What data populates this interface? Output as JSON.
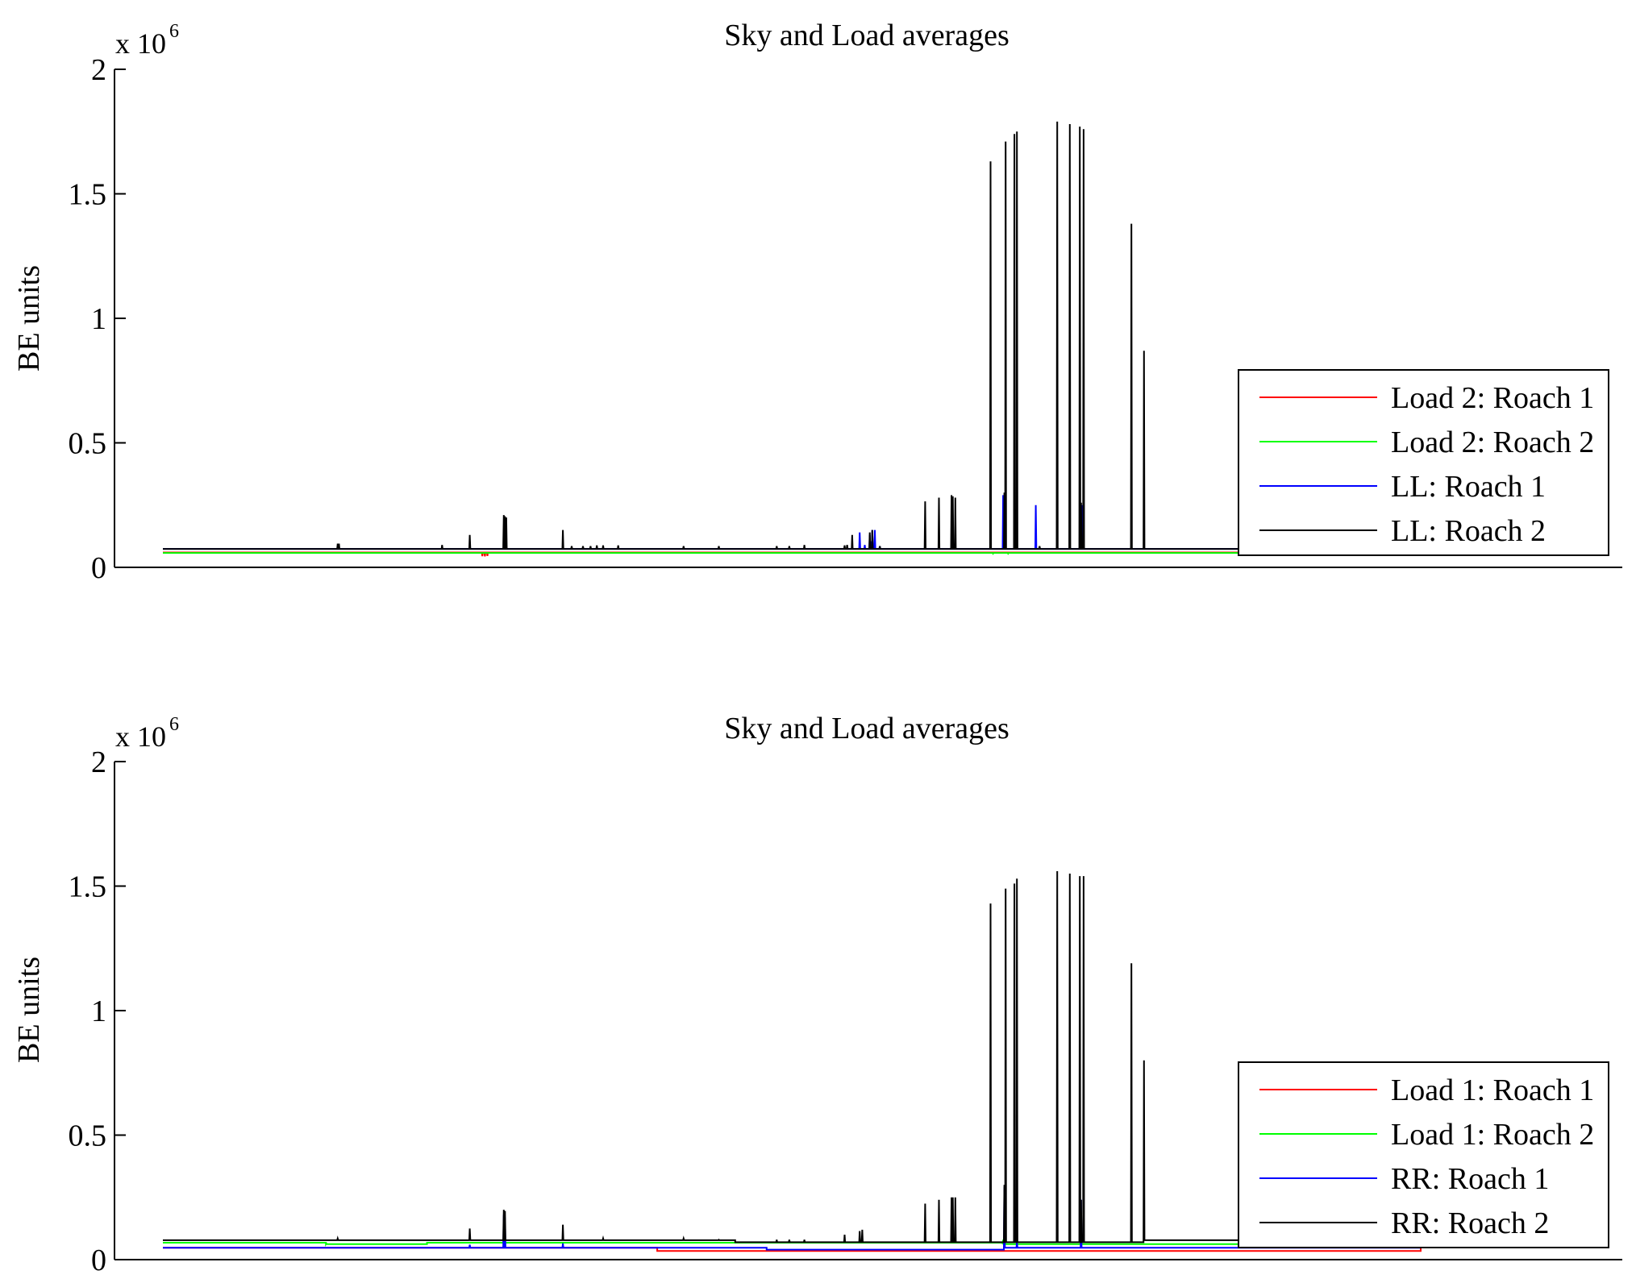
{
  "chart_data": [
    {
      "type": "line",
      "title": "Sky and Load averages",
      "xlabel": "",
      "ylabel": "BE units",
      "ylim": [
        0,
        2000000
      ],
      "y_exponent_label": "x 10",
      "y_exponent_power": "6",
      "y_ticks": [
        {
          "value": 0,
          "label": "0"
        },
        {
          "value": 500000,
          "label": "0.5"
        },
        {
          "value": 1000000,
          "label": "1"
        },
        {
          "value": 1500000,
          "label": "1.5"
        },
        {
          "value": 2000000,
          "label": "2"
        }
      ],
      "xlim": [
        0,
        1000
      ],
      "x_ticks_visible": false,
      "legend_position": "lower-right",
      "series": [
        {
          "name": "Load 2: Roach 1",
          "color": "#ff0000",
          "baseline": 60000,
          "spikes": [
            [
              254,
              45000
            ],
            [
              256,
              44000
            ],
            [
              258,
              46000
            ]
          ]
        },
        {
          "name": "Load 2: Roach 2",
          "color": "#00ff00",
          "baseline": 58000,
          "spikes": [
            [
              660,
              55000
            ],
            [
              672,
              55000
            ]
          ]
        },
        {
          "name": "LL: Roach 1",
          "color": "#0000ff",
          "baseline": 74000,
          "spikes": [
            [
              548,
              80000
            ],
            [
              554,
              140000
            ],
            [
              558,
              90000
            ],
            [
              562,
              130000
            ],
            [
              562.6,
              105000
            ],
            [
              564,
              150000
            ],
            [
              566,
              150000
            ],
            [
              570,
              85000
            ],
            [
              668,
              290000
            ],
            [
              694,
              250000
            ],
            [
              730,
              110000
            ],
            [
              731,
              250000
            ]
          ]
        },
        {
          "name": "LL: Roach 2",
          "color": "#000000",
          "baseline": 74000,
          "spikes": [
            [
              139,
              95000
            ],
            [
              140,
              95000
            ],
            [
              222,
              90000
            ],
            [
              244,
              130000
            ],
            [
              271,
              210000
            ],
            [
              272,
              205000
            ],
            [
              273,
              200000
            ],
            [
              318,
              150000
            ],
            [
              325,
              85000
            ],
            [
              334,
              85000
            ],
            [
              340,
              85000
            ],
            [
              345,
              88000
            ],
            [
              350,
              88000
            ],
            [
              362,
              88000
            ],
            [
              414,
              85000
            ],
            [
              442,
              85000
            ],
            [
              488,
              85000
            ],
            [
              498,
              85000
            ],
            [
              510,
              90000
            ],
            [
              542,
              88000
            ],
            [
              544,
              90000
            ],
            [
              548,
              130000
            ],
            [
              562,
              140000
            ],
            [
              564,
              150000
            ],
            [
              570,
              85000
            ],
            [
              606,
              265000
            ],
            [
              617,
              280000
            ],
            [
              627,
              290000
            ],
            [
              628,
              285000
            ],
            [
              630,
              280000
            ],
            [
              658,
              1630000
            ],
            [
              669,
              300000
            ],
            [
              670,
              1710000
            ],
            [
              677,
              1740000
            ],
            [
              679,
              1750000
            ],
            [
              697,
              85000
            ],
            [
              711,
              1790000
            ],
            [
              721,
              1780000
            ],
            [
              729,
              1770000
            ],
            [
              730,
              260000
            ],
            [
              732,
              1760000
            ],
            [
              770,
              1380000
            ],
            [
              780,
              870000
            ]
          ]
        }
      ]
    },
    {
      "type": "line",
      "title": "Sky and Load averages",
      "xlabel": "",
      "ylabel": "BE units",
      "ylim": [
        0,
        2000000
      ],
      "y_exponent_label": "x 10",
      "y_exponent_power": "6",
      "y_ticks": [
        {
          "value": 0,
          "label": "0"
        },
        {
          "value": 500000,
          "label": "0.5"
        },
        {
          "value": 1000000,
          "label": "1"
        },
        {
          "value": 1500000,
          "label": "1.5"
        },
        {
          "value": 2000000,
          "label": "2"
        }
      ],
      "xlim": [
        0,
        1000
      ],
      "x_ticks_visible": false,
      "legend_position": "lower-right",
      "series": [
        {
          "name": "Load 1: Roach 1",
          "color": "#ff0000",
          "baseline": 48000,
          "segments": [
            [
              393,
              865,
              35000
            ]
          ],
          "spikes": []
        },
        {
          "name": "Load 1: Roach 2",
          "color": "#00ff00",
          "baseline": 62000,
          "segments": [
            [
              0,
              48,
              68000
            ],
            [
              210,
              290,
              68000
            ]
          ],
          "spikes": [
            [
              130,
              65000
            ],
            [
              271,
              80000
            ],
            [
              668,
              80000
            ],
            [
              730,
              80000
            ]
          ]
        },
        {
          "name": "RR: Roach 1",
          "color": "#0000ff",
          "baseline": 48000,
          "segments": [
            [
              480,
              580,
              40000
            ]
          ],
          "spikes": [
            [
              244,
              60000
            ],
            [
              271,
              180000
            ],
            [
              272,
              170000
            ],
            [
              318,
              65000
            ],
            [
              669,
              290000
            ],
            [
              679,
              70000
            ],
            [
              730,
              240000
            ]
          ]
        },
        {
          "name": "RR: Roach 2",
          "color": "#000000",
          "baseline": 78000,
          "segments": [
            [
              455,
              565,
              70000
            ],
            [
              600,
              775,
              70000
            ]
          ],
          "spikes": [
            [
              139,
              85000
            ],
            [
              244,
              125000
            ],
            [
              271,
              200000
            ],
            [
              272,
              195000
            ],
            [
              318,
              140000
            ],
            [
              350,
              85000
            ],
            [
              414,
              85000
            ],
            [
              442,
              80000
            ],
            [
              488,
              80000
            ],
            [
              498,
              80000
            ],
            [
              510,
              80000
            ],
            [
              542,
              100000
            ],
            [
              554,
              115000
            ],
            [
              556,
              120000
            ],
            [
              606,
              225000
            ],
            [
              617,
              240000
            ],
            [
              627,
              250000
            ],
            [
              628,
              250000
            ],
            [
              630,
              250000
            ],
            [
              658,
              1430000
            ],
            [
              669,
              300000
            ],
            [
              670,
              1490000
            ],
            [
              677,
              1510000
            ],
            [
              679,
              1530000
            ],
            [
              711,
              1560000
            ],
            [
              721,
              1550000
            ],
            [
              729,
              1540000
            ],
            [
              730,
              240000
            ],
            [
              732,
              1540000
            ],
            [
              770,
              1190000
            ],
            [
              780,
              800000
            ]
          ]
        }
      ]
    }
  ]
}
